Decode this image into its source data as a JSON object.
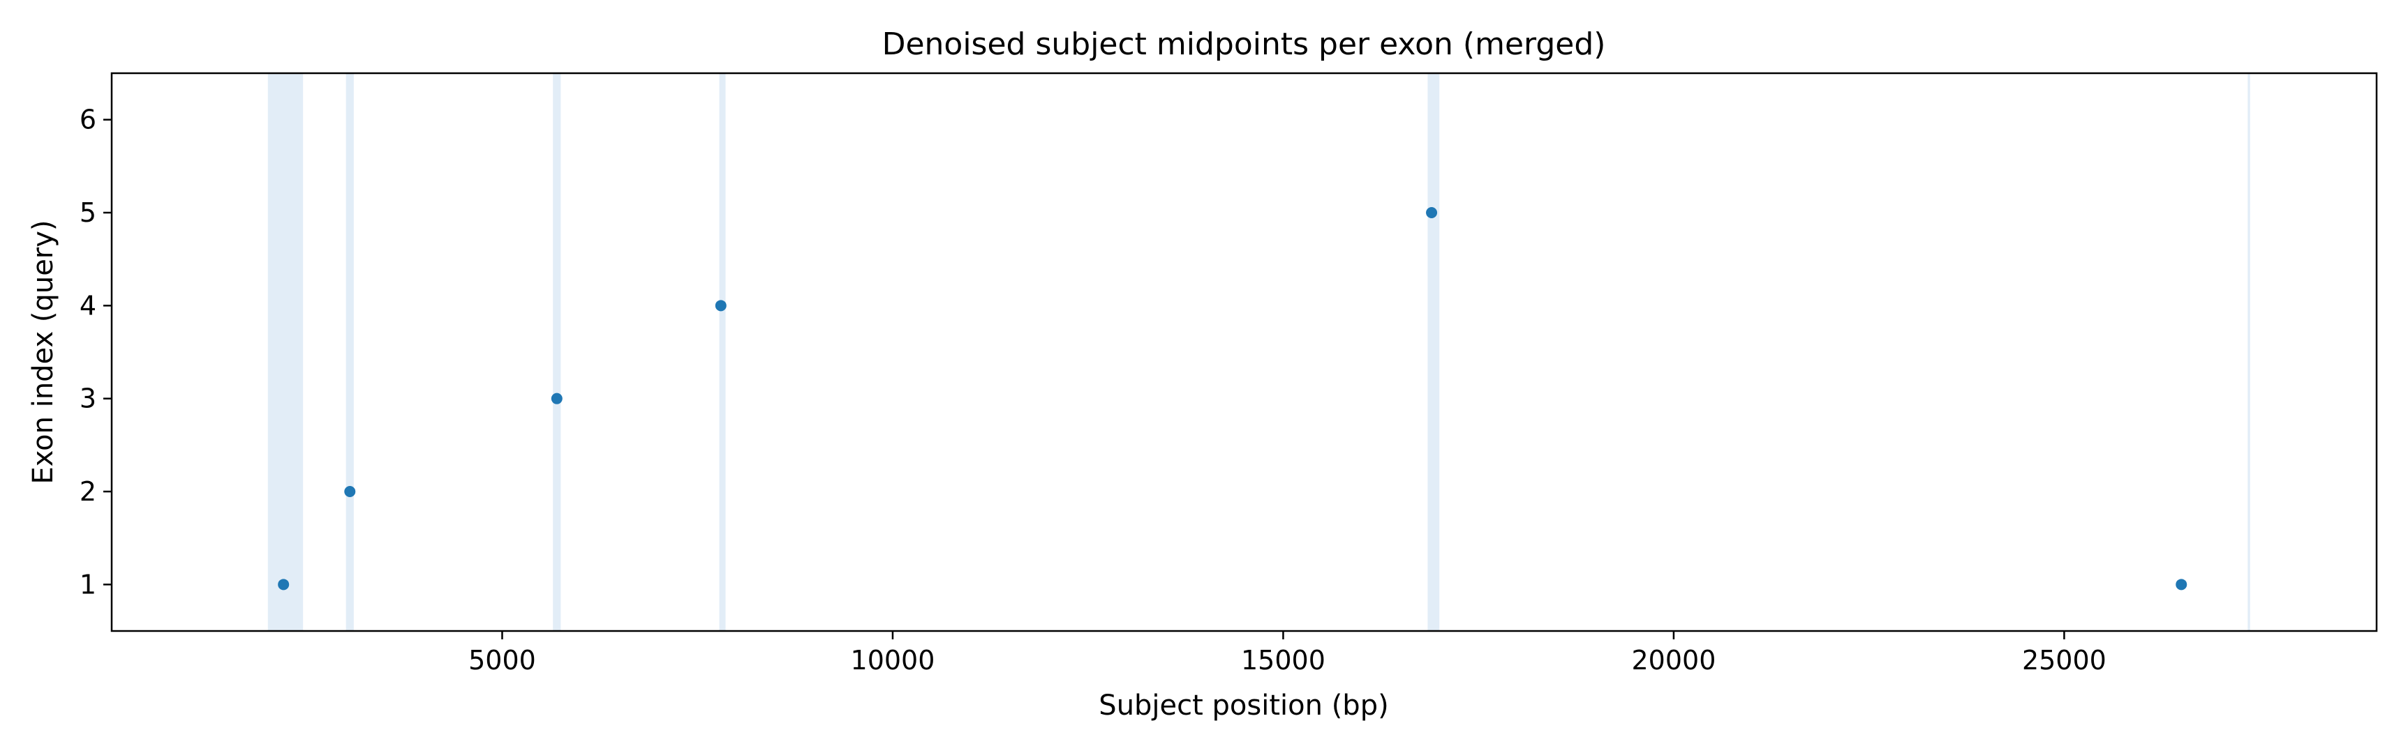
{
  "chart_data": {
    "type": "scatter",
    "title": "Denoised subject midpoints per exon (merged)",
    "xlabel": "Subject position (bp)",
    "ylabel": "Exon index (query)",
    "xlim": [
      0,
      29000
    ],
    "ylim": [
      0.5,
      6.5
    ],
    "xticks": [
      5000,
      10000,
      15000,
      20000,
      25000
    ],
    "yticks": [
      1,
      2,
      3,
      4,
      5,
      6
    ],
    "grid": false,
    "points": [
      {
        "x": 2200,
        "y": 1
      },
      {
        "x": 3050,
        "y": 2
      },
      {
        "x": 5700,
        "y": 3
      },
      {
        "x": 7800,
        "y": 4
      },
      {
        "x": 16900,
        "y": 5
      },
      {
        "x": 26500,
        "y": 1
      }
    ],
    "shaded_regions": [
      {
        "start": 2000,
        "end": 2450
      },
      {
        "start": 3000,
        "end": 3100
      },
      {
        "start": 5650,
        "end": 5750
      },
      {
        "start": 7780,
        "end": 7860
      },
      {
        "start": 16850,
        "end": 17000
      },
      {
        "start": 27350,
        "end": 27380
      }
    ],
    "point_color": "#1f77b4",
    "shade_color": "#c6dbef"
  }
}
